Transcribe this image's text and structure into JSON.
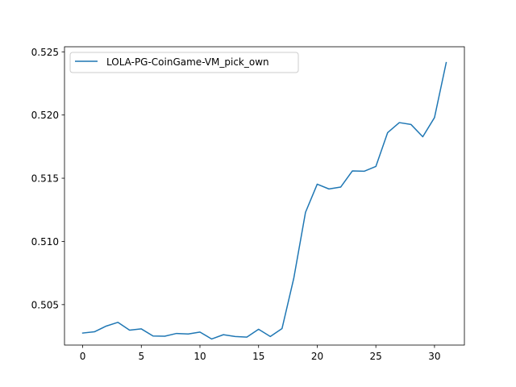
{
  "chart_data": {
    "type": "line",
    "title": "",
    "xlabel": "",
    "ylabel": "",
    "xlim": [
      -1.55,
      32.55
    ],
    "ylim": [
      0.5018,
      0.5254
    ],
    "x_ticks": [
      0,
      5,
      10,
      15,
      20,
      25,
      30
    ],
    "y_ticks": [
      0.505,
      0.51,
      0.515,
      0.52,
      0.525
    ],
    "x_tick_labels": [
      "0",
      "5",
      "10",
      "15",
      "20",
      "25",
      "30"
    ],
    "y_tick_labels": [
      "0.505",
      "0.510",
      "0.515",
      "0.520",
      "0.525"
    ],
    "grid": false,
    "legend_position": "upper-left",
    "series": [
      {
        "name": "LOLA-PG-CoinGame-VM_pick_own",
        "color": "#1f77b4",
        "x": [
          0,
          1,
          2,
          3,
          4,
          5,
          6,
          7,
          8,
          9,
          10,
          11,
          12,
          13,
          14,
          15,
          16,
          17,
          18,
          19,
          20,
          21,
          22,
          23,
          24,
          25,
          26,
          27,
          28,
          29,
          30,
          31
        ],
        "values": [
          0.50275,
          0.50285,
          0.5033,
          0.5036,
          0.50298,
          0.50308,
          0.50252,
          0.5025,
          0.50272,
          0.50268,
          0.50283,
          0.50228,
          0.50262,
          0.50248,
          0.50243,
          0.50305,
          0.50248,
          0.50311,
          0.50708,
          0.5123,
          0.51453,
          0.51415,
          0.5143,
          0.51558,
          0.51555,
          0.51593,
          0.5186,
          0.5194,
          0.51925,
          0.51828,
          0.5198,
          0.52415
        ]
      }
    ]
  }
}
